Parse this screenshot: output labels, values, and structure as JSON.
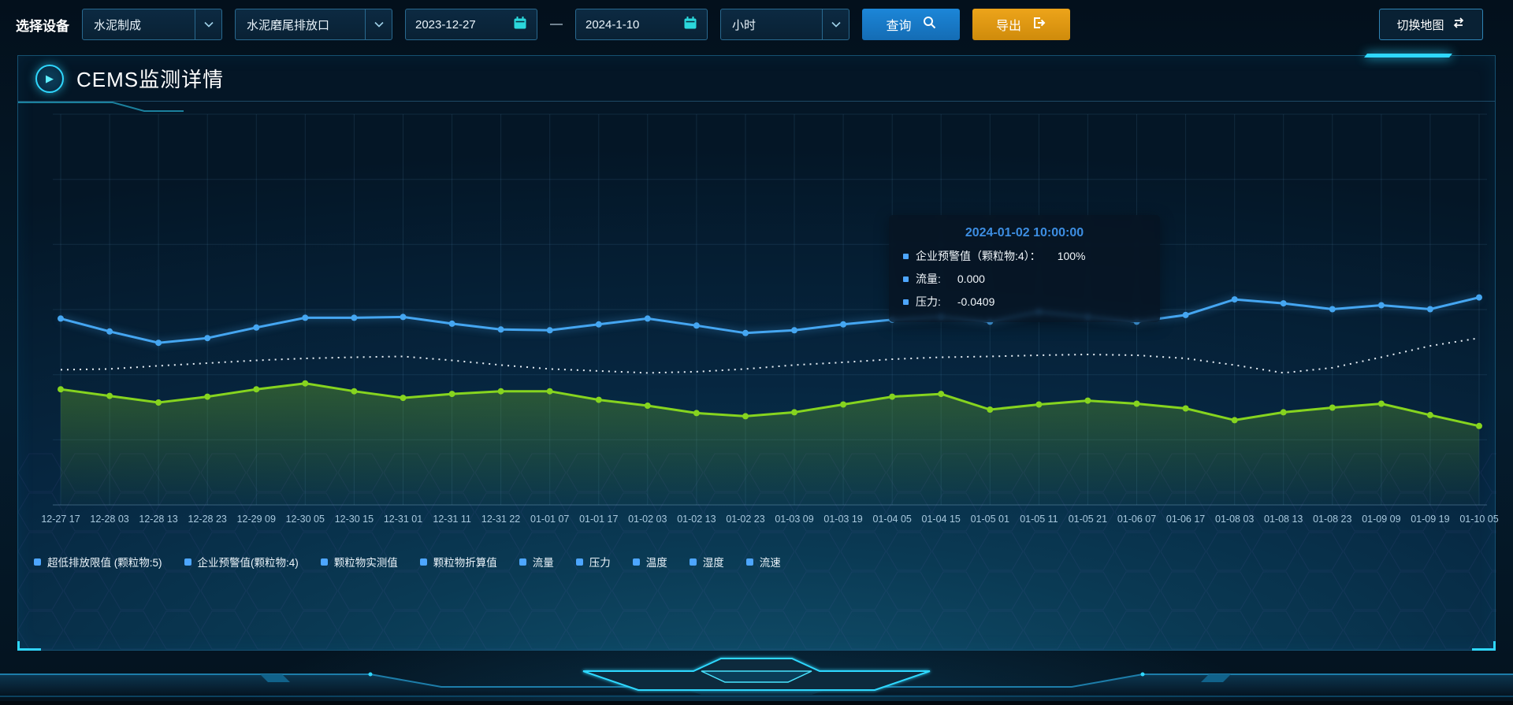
{
  "toolbar": {
    "device_label": "选择设备",
    "device_type_value": "水泥制成",
    "outlet_value": "水泥磨尾排放口",
    "start_date": "2023-12-27",
    "date_separator": "—",
    "end_date": "2024-1-10",
    "interval_value": "小时",
    "query_label": "查询",
    "export_label": "导出",
    "switch_map_label": "切换地图"
  },
  "panel": {
    "title": "CEMS监测详情"
  },
  "tooltip": {
    "timestamp": "2024-01-02 10:00:00",
    "marker_color": "#4da6ff",
    "rows": [
      {
        "label": "企业预警值（颗粒物:4）：",
        "value": "100%"
      },
      {
        "label": "流量:",
        "value": "0.000"
      },
      {
        "label": "压力:",
        "value": "-0.0409"
      }
    ]
  },
  "colors": {
    "accent_cyan": "#2fd8ff",
    "query_blue": "#1778c8",
    "export_orange": "#df9c12",
    "series_blue": "#45a6f1",
    "series_white": "#e6eef5",
    "series_green": "#86d41f",
    "legend_marker": "#4da6ff",
    "tooltip_title": "#3d8ee2"
  },
  "chart_data": {
    "type": "line",
    "title": "CEMS监测详情",
    "xlabel": "",
    "ylabel": "",
    "ylim": [
      0,
      100
    ],
    "grid": true,
    "legend_position": "bottom-left",
    "x": [
      "12-27 17",
      "12-28 03",
      "12-28 13",
      "12-28 23",
      "12-29 09",
      "12-30 05",
      "12-30 15",
      "12-31 01",
      "12-31 11",
      "12-31 22",
      "01-01 07",
      "01-01 17",
      "01-02 03",
      "01-02 13",
      "01-02 23",
      "01-03 09",
      "01-03 19",
      "01-04 05",
      "01-04 15",
      "01-05 01",
      "01-05 11",
      "01-05 21",
      "01-06 07",
      "01-06 17",
      "01-08 03",
      "01-08 13",
      "01-08 23",
      "01-09 09",
      "01-09 19",
      "01-10 05"
    ],
    "series": [
      {
        "name": "series-blue",
        "color": "#45a6f1",
        "style": "solid",
        "markers": true,
        "glow": true,
        "area": false,
        "values": [
          47.7,
          44.4,
          41.5,
          42.7,
          45.4,
          47.9,
          47.9,
          48.1,
          46.4,
          44.9,
          44.7,
          46.2,
          47.7,
          45.9,
          44.0,
          44.7,
          46.2,
          47.4,
          48.1,
          46.9,
          49.4,
          48.1,
          46.9,
          48.6,
          52.6,
          51.6,
          50.1,
          51.1,
          50.1,
          53.1
        ]
      },
      {
        "name": "series-white-dotted",
        "color": "#e6eef5",
        "style": "dashed",
        "markers": false,
        "glow": false,
        "area": false,
        "values": [
          34.6,
          34.8,
          35.6,
          36.3,
          37.0,
          37.5,
          37.8,
          38.0,
          37.0,
          35.8,
          34.8,
          34.3,
          33.8,
          34.1,
          34.8,
          35.8,
          36.5,
          37.3,
          37.8,
          38.0,
          38.3,
          38.5,
          38.3,
          37.5,
          35.8,
          33.8,
          35.1,
          37.8,
          40.7,
          42.7
        ]
      },
      {
        "name": "series-green",
        "color": "#86d41f",
        "style": "solid",
        "markers": true,
        "glow": false,
        "area": true,
        "values": [
          29.6,
          27.9,
          26.2,
          27.7,
          29.6,
          31.1,
          29.1,
          27.4,
          28.4,
          29.1,
          29.1,
          26.9,
          25.4,
          23.5,
          22.7,
          23.7,
          25.7,
          27.7,
          28.4,
          24.4,
          25.7,
          26.7,
          25.9,
          24.7,
          21.7,
          23.7,
          24.9,
          25.9,
          23.0,
          20.2
        ]
      }
    ],
    "legend": [
      "超低排放限值 (颗粒物:5)",
      "企业预警值(颗粒物:4)",
      "颗粒物实测值",
      "颗粒物折算值",
      "流量",
      "压力",
      "温度",
      "湿度",
      "流速"
    ]
  }
}
